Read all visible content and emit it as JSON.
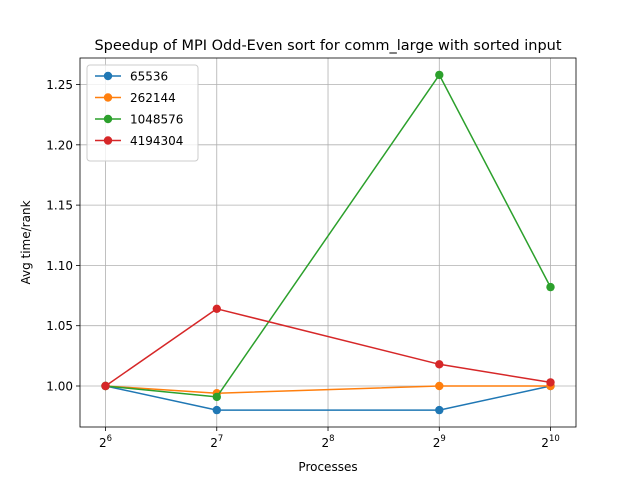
{
  "chart_data": {
    "type": "line",
    "title": "Speedup of MPI Odd-Even sort for comm_large with sorted input",
    "xlabel": "Processes",
    "ylabel": "Avg time/rank",
    "x_scale": "log2",
    "x": [
      64,
      128,
      512,
      1024
    ],
    "xlim": [
      54.6,
      1200
    ],
    "ylim": [
      0.966,
      1.272
    ],
    "xticks": [
      {
        "value": 64,
        "base": "2",
        "exp": "6"
      },
      {
        "value": 128,
        "base": "2",
        "exp": "7"
      },
      {
        "value": 256,
        "base": "2",
        "exp": "8"
      },
      {
        "value": 512,
        "base": "2",
        "exp": "9"
      },
      {
        "value": 1024,
        "base": "2",
        "exp": "10"
      }
    ],
    "yticks": [
      "1.00",
      "1.05",
      "1.10",
      "1.15",
      "1.20",
      "1.25"
    ],
    "grid": true,
    "legend_position": "upper-left",
    "series": [
      {
        "name": "65536",
        "color": "#1f77b4",
        "values": [
          1.0,
          0.98,
          0.98,
          1.0
        ]
      },
      {
        "name": "262144",
        "color": "#ff7f0e",
        "values": [
          1.0,
          0.994,
          1.0,
          1.0
        ]
      },
      {
        "name": "1048576",
        "color": "#2ca02c",
        "values": [
          1.0,
          0.991,
          1.258,
          1.082
        ]
      },
      {
        "name": "4194304",
        "color": "#d62728",
        "values": [
          1.0,
          1.064,
          1.018,
          1.003
        ]
      }
    ]
  }
}
